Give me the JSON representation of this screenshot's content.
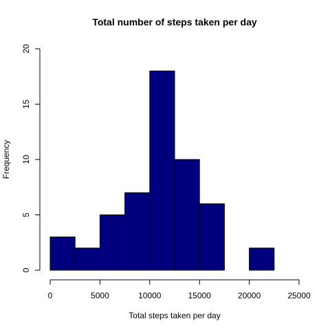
{
  "chart_data": {
    "type": "bar",
    "title": "Total number of steps taken per day",
    "xlabel": "Total steps taken per day",
    "ylabel": "Frequency",
    "bin_edges": [
      0,
      2500,
      5000,
      7500,
      10000,
      12500,
      15000,
      17500,
      20000,
      22500
    ],
    "values": [
      3,
      2,
      5,
      7,
      18,
      10,
      6,
      0,
      2
    ],
    "xlim": [
      0,
      25000
    ],
    "ylim": [
      0,
      20
    ],
    "x_ticks": [
      "0",
      "5000",
      "10000",
      "15000",
      "20000",
      "25000"
    ],
    "y_ticks": [
      "0",
      "5",
      "10",
      "15",
      "20"
    ],
    "bar_color": "#00007F",
    "grid": false,
    "legend": "none"
  }
}
